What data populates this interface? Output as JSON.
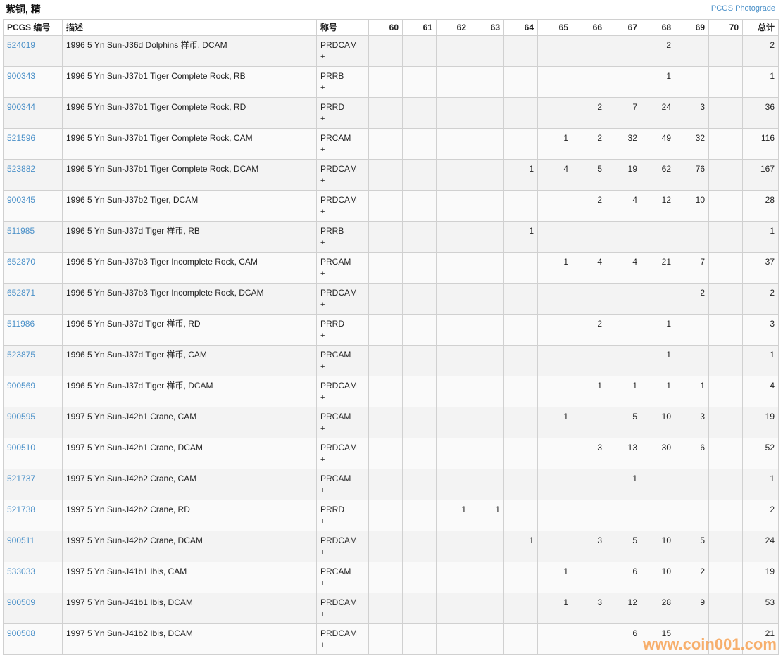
{
  "title": "紫铜, 精",
  "photograde_link": "PCGS Photograde",
  "watermark": "www.coin001.com",
  "colors": {
    "link": "#4a90c8",
    "watermark": "#f5963c",
    "row_alt": "#f3f3f3"
  },
  "headers": {
    "pcgs": "PCGS 编号",
    "desc": "描述",
    "designation": "称号",
    "grades": [
      "60",
      "61",
      "62",
      "63",
      "64",
      "65",
      "66",
      "67",
      "68",
      "69",
      "70"
    ],
    "total": "总计"
  },
  "rows": [
    {
      "pcgs": "524019",
      "desc": "1996 5 Yn Sun-J36d Dolphins 样币, DCAM",
      "designation": "PRDCAM",
      "plus": "+",
      "grades": [
        "",
        "",
        "",
        "",
        "",
        "",
        "",
        "",
        "2",
        "",
        ""
      ],
      "total": "2"
    },
    {
      "pcgs": "900343",
      "desc": "1996 5 Yn Sun-J37b1 Tiger Complete Rock, RB",
      "designation": "PRRB",
      "plus": "+",
      "grades": [
        "",
        "",
        "",
        "",
        "",
        "",
        "",
        "",
        "1",
        "",
        ""
      ],
      "total": "1"
    },
    {
      "pcgs": "900344",
      "desc": "1996 5 Yn Sun-J37b1 Tiger Complete Rock, RD",
      "designation": "PRRD",
      "plus": "+",
      "grades": [
        "",
        "",
        "",
        "",
        "",
        "",
        "2",
        "7",
        "24",
        "3",
        ""
      ],
      "total": "36"
    },
    {
      "pcgs": "521596",
      "desc": "1996 5 Yn Sun-J37b1 Tiger Complete Rock, CAM",
      "designation": "PRCAM",
      "plus": "+",
      "grades": [
        "",
        "",
        "",
        "",
        "",
        "1",
        "2",
        "32",
        "49",
        "32",
        ""
      ],
      "total": "116"
    },
    {
      "pcgs": "523882",
      "desc": "1996 5 Yn Sun-J37b1 Tiger Complete Rock, DCAM",
      "designation": "PRDCAM",
      "plus": "+",
      "grades": [
        "",
        "",
        "",
        "",
        "1",
        "4",
        "5",
        "19",
        "62",
        "76",
        ""
      ],
      "total": "167"
    },
    {
      "pcgs": "900345",
      "desc": "1996 5 Yn Sun-J37b2 Tiger, DCAM",
      "designation": "PRDCAM",
      "plus": "+",
      "grades": [
        "",
        "",
        "",
        "",
        "",
        "",
        "2",
        "4",
        "12",
        "10",
        ""
      ],
      "total": "28"
    },
    {
      "pcgs": "511985",
      "desc": "1996 5 Yn Sun-J37d Tiger 样币, RB",
      "designation": "PRRB",
      "plus": "+",
      "grades": [
        "",
        "",
        "",
        "",
        "1",
        "",
        "",
        "",
        "",
        "",
        ""
      ],
      "total": "1"
    },
    {
      "pcgs": "652870",
      "desc": "1996 5 Yn Sun-J37b3 Tiger Incomplete Rock, CAM",
      "designation": "PRCAM",
      "plus": "+",
      "grades": [
        "",
        "",
        "",
        "",
        "",
        "1",
        "4",
        "4",
        "21",
        "7",
        ""
      ],
      "total": "37"
    },
    {
      "pcgs": "652871",
      "desc": "1996 5 Yn Sun-J37b3 Tiger Incomplete Rock, DCAM",
      "designation": "PRDCAM",
      "plus": "+",
      "grades": [
        "",
        "",
        "",
        "",
        "",
        "",
        "",
        "",
        "",
        "2",
        ""
      ],
      "total": "2"
    },
    {
      "pcgs": "511986",
      "desc": "1996 5 Yn Sun-J37d Tiger 样币, RD",
      "designation": "PRRD",
      "plus": "+",
      "grades": [
        "",
        "",
        "",
        "",
        "",
        "",
        "2",
        "",
        "1",
        "",
        ""
      ],
      "total": "3"
    },
    {
      "pcgs": "523875",
      "desc": "1996 5 Yn Sun-J37d Tiger 样币, CAM",
      "designation": "PRCAM",
      "plus": "+",
      "grades": [
        "",
        "",
        "",
        "",
        "",
        "",
        "",
        "",
        "1",
        "",
        ""
      ],
      "total": "1"
    },
    {
      "pcgs": "900569",
      "desc": "1996 5 Yn Sun-J37d Tiger 样币, DCAM",
      "designation": "PRDCAM",
      "plus": "+",
      "grades": [
        "",
        "",
        "",
        "",
        "",
        "",
        "1",
        "1",
        "1",
        "1",
        ""
      ],
      "total": "4"
    },
    {
      "pcgs": "900595",
      "desc": "1997 5 Yn Sun-J42b1 Crane, CAM",
      "designation": "PRCAM",
      "plus": "+",
      "grades": [
        "",
        "",
        "",
        "",
        "",
        "1",
        "",
        "5",
        "10",
        "3",
        ""
      ],
      "total": "19"
    },
    {
      "pcgs": "900510",
      "desc": "1997 5 Yn Sun-J42b1 Crane, DCAM",
      "designation": "PRDCAM",
      "plus": "+",
      "grades": [
        "",
        "",
        "",
        "",
        "",
        "",
        "3",
        "13",
        "30",
        "6",
        ""
      ],
      "total": "52"
    },
    {
      "pcgs": "521737",
      "desc": "1997 5 Yn Sun-J42b2 Crane, CAM",
      "designation": "PRCAM",
      "plus": "+",
      "grades": [
        "",
        "",
        "",
        "",
        "",
        "",
        "",
        "1",
        "",
        "",
        ""
      ],
      "total": "1"
    },
    {
      "pcgs": "521738",
      "desc": "1997 5 Yn Sun-J42b2 Crane, RD",
      "designation": "PRRD",
      "plus": "+",
      "grades": [
        "",
        "",
        "1",
        "1",
        "",
        "",
        "",
        "",
        "",
        "",
        ""
      ],
      "total": "2"
    },
    {
      "pcgs": "900511",
      "desc": "1997 5 Yn Sun-J42b2 Crane, DCAM",
      "designation": "PRDCAM",
      "plus": "+",
      "grades": [
        "",
        "",
        "",
        "",
        "1",
        "",
        "3",
        "5",
        "10",
        "5",
        ""
      ],
      "total": "24"
    },
    {
      "pcgs": "533033",
      "desc": "1997 5 Yn Sun-J41b1 Ibis, CAM",
      "designation": "PRCAM",
      "plus": "+",
      "grades": [
        "",
        "",
        "",
        "",
        "",
        "1",
        "",
        "6",
        "10",
        "2",
        ""
      ],
      "total": "19"
    },
    {
      "pcgs": "900509",
      "desc": "1997 5 Yn Sun-J41b1 Ibis, DCAM",
      "designation": "PRDCAM",
      "plus": "+",
      "grades": [
        "",
        "",
        "",
        "",
        "",
        "1",
        "3",
        "12",
        "28",
        "9",
        ""
      ],
      "total": "53"
    },
    {
      "pcgs": "900508",
      "desc": "1997 5 Yn Sun-J41b2 Ibis, DCAM",
      "designation": "PRDCAM",
      "plus": "+",
      "grades": [
        "",
        "",
        "",
        "",
        "",
        "",
        "",
        "6",
        "15",
        "",
        ""
      ],
      "total": "21"
    }
  ]
}
